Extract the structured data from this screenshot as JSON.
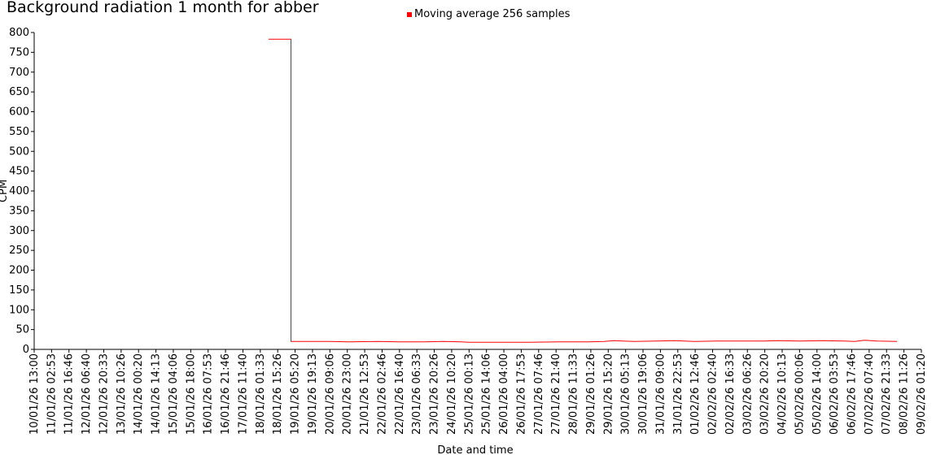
{
  "chart_data": {
    "type": "line",
    "title": "Background radiation 1 month for abber",
    "xlabel": "Date and time",
    "ylabel": "CPM",
    "ylim": [
      0,
      800
    ],
    "yticks": [
      0,
      50,
      100,
      150,
      200,
      250,
      300,
      350,
      400,
      450,
      500,
      550,
      600,
      650,
      700,
      750,
      800
    ],
    "xticks": [
      "10/01/26 13:00",
      "11/01/26 02:53",
      "11/01/26 16:46",
      "12/01/26 06:40",
      "12/01/26 20:33",
      "13/01/26 10:26",
      "14/01/26 00:20",
      "14/01/26 14:13",
      "15/01/26 04:06",
      "15/01/26 18:00",
      "16/01/26 07:53",
      "16/01/26 21:46",
      "17/01/26 11:40",
      "18/01/26 01:33",
      "18/01/26 15:26",
      "19/01/26 05:20",
      "19/01/26 19:13",
      "20/01/26 09:06",
      "20/01/26 23:00",
      "21/01/26 12:53",
      "22/01/26 02:46",
      "22/01/26 16:40",
      "23/01/26 06:33",
      "23/01/26 20:26",
      "24/01/26 10:20",
      "25/01/26 00:13",
      "25/01/26 14:06",
      "26/01/26 04:00",
      "26/01/26 17:53",
      "27/01/26 07:46",
      "27/01/26 21:40",
      "28/01/26 11:33",
      "29/01/26 01:26",
      "29/01/26 15:20",
      "30/01/26 05:13",
      "30/01/26 19:06",
      "31/01/26 09:00",
      "31/01/26 22:53",
      "01/02/26 12:46",
      "02/02/26 02:40",
      "02/02/26 16:33",
      "03/02/26 06:26",
      "03/02/26 20:20",
      "04/02/26 10:13",
      "05/02/26 00:06",
      "05/02/26 14:00",
      "06/02/26 03:53",
      "06/02/26 17:46",
      "07/02/26 07:40",
      "07/02/26 21:33",
      "08/02/26 11:26",
      "09/02/26 01:20"
    ],
    "legend_position": "top-center",
    "grid": false,
    "series": [
      {
        "name": "Moving average 256 samples",
        "color": "#ff0000",
        "x": [
          "18/01/26 08:00",
          "19/01/26 02:00",
          "19/01/26 02:00",
          "19/01/26 12:00",
          "20/01/26 09:00",
          "21/01/26 00:00",
          "22/01/26 00:00",
          "22/01/26 16:00",
          "23/01/26 12:00",
          "24/01/26 04:00",
          "24/01/26 18:00",
          "25/01/26 00:00",
          "26/01/26 04:00",
          "27/01/26 00:00",
          "28/01/26 00:00",
          "29/01/26 00:00",
          "29/01/26 12:00",
          "29/01/26 20:00",
          "30/01/26 12:00",
          "31/01/26 06:00",
          "31/01/26 20:00",
          "01/02/26 12:00",
          "02/02/26 06:00",
          "03/02/26 00:00",
          "03/02/26 20:00",
          "04/02/26 06:00",
          "05/02/26 00:00",
          "05/02/26 20:00",
          "06/02/26 12:00",
          "06/02/26 20:00",
          "07/02/26 04:00",
          "07/02/26 14:00",
          "08/02/26 06:00"
        ],
        "y": [
          783,
          783,
          20,
          20,
          20,
          19,
          20,
          19,
          19,
          20,
          19,
          18,
          18,
          18,
          19,
          19,
          20,
          22,
          20,
          21,
          22,
          20,
          21,
          21,
          21,
          22,
          21,
          22,
          21,
          20,
          23,
          21,
          20
        ]
      }
    ]
  }
}
